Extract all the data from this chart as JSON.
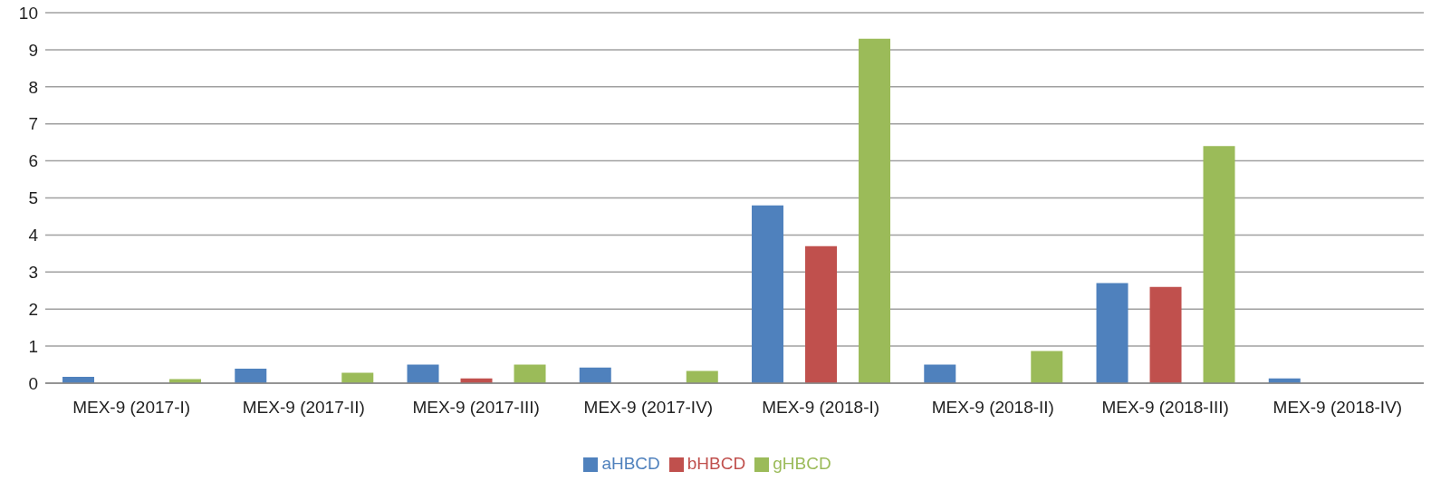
{
  "chart_data": {
    "type": "bar",
    "categories": [
      "MEX-9 (2017-I)",
      "MEX-9 (2017-II)",
      "MEX-9 (2017-III)",
      "MEX-9 (2017-IV)",
      "MEX-9 (2018-I)",
      "MEX-9 (2018-II)",
      "MEX-9 (2018-III)",
      "MEX-9 (2018-IV)"
    ],
    "series": [
      {
        "name": "aHBCD",
        "color": "#4f81bd",
        "values": [
          0.17,
          0.39,
          0.5,
          0.42,
          4.8,
          0.5,
          2.7,
          0.13
        ]
      },
      {
        "name": "bHBCD",
        "color": "#c0504d",
        "values": [
          null,
          null,
          0.13,
          null,
          3.7,
          null,
          2.6,
          null
        ]
      },
      {
        "name": "gHBCD",
        "color": "#9bbb59",
        "values": [
          0.11,
          0.28,
          0.5,
          0.33,
          9.3,
          0.87,
          6.4,
          null
        ]
      }
    ],
    "ylim": [
      0,
      10
    ],
    "yticks": [
      0,
      1,
      2,
      3,
      4,
      5,
      6,
      7,
      8,
      9,
      10
    ],
    "grid": "y",
    "legend": "bottom"
  }
}
